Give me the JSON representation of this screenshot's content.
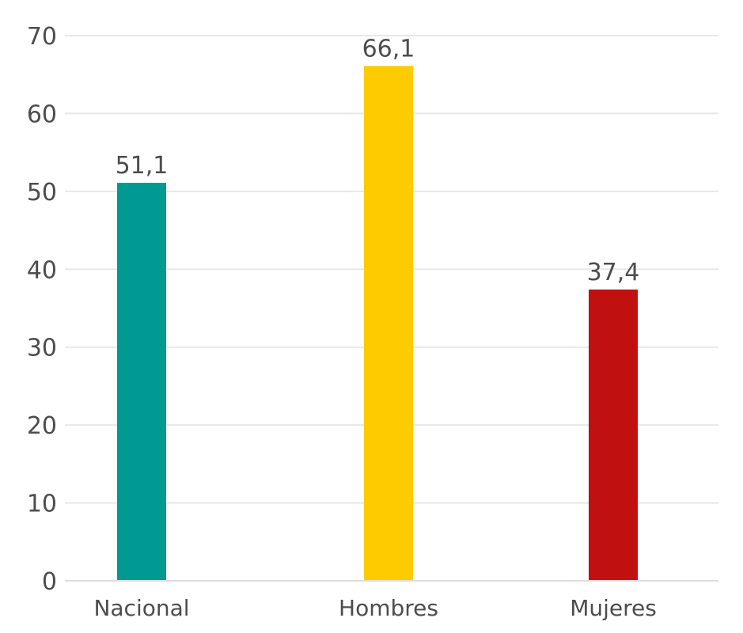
{
  "chart_data": {
    "type": "bar",
    "categories": [
      "Nacional",
      "Hombres",
      "Mujeres"
    ],
    "values": [
      51.1,
      66.1,
      37.4
    ],
    "data_labels": [
      "51,1",
      "66,1",
      "37,4"
    ],
    "bar_colors": [
      "#009a93",
      "#fdcb00",
      "#c11010"
    ],
    "title": "",
    "xlabel": "",
    "ylabel": "",
    "ylim": [
      0,
      70
    ],
    "yticks": [
      0,
      10,
      20,
      30,
      40,
      50,
      60,
      70
    ],
    "ytick_labels": [
      "0",
      "10",
      "20",
      "30",
      "40",
      "50",
      "60",
      "70"
    ],
    "grid": true,
    "legend": "none"
  }
}
